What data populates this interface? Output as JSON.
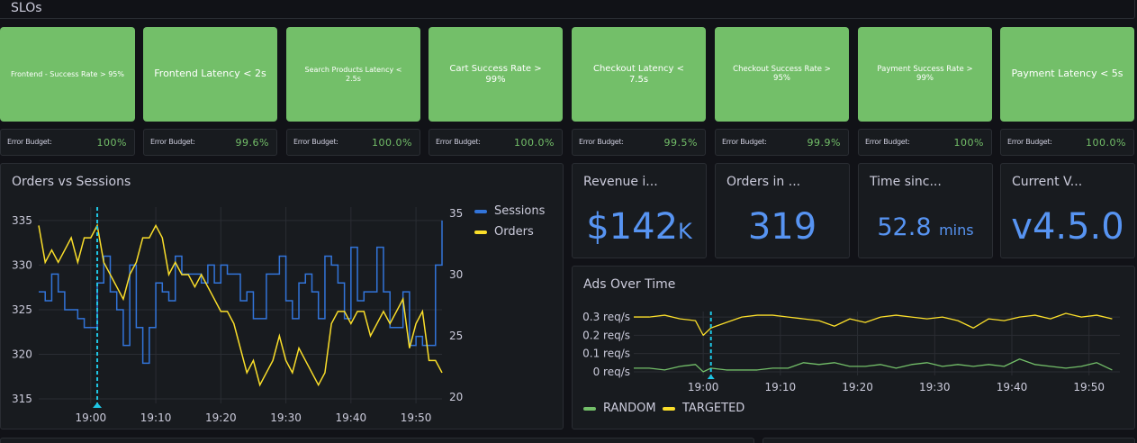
{
  "row": {
    "title": "SLOs"
  },
  "slos": [
    {
      "label": "Frontend - Success Rate > 95%",
      "budget_label": "Error Budget:",
      "budget_value": "100%"
    },
    {
      "label": "Frontend Latency < 2s",
      "budget_label": "Error Budget:",
      "budget_value": "99.6%"
    },
    {
      "label": "Search Products Latency < 2.5s",
      "budget_label": "Error Budget:",
      "budget_value": "100.0%"
    },
    {
      "label": "Cart Success Rate > 99%",
      "budget_label": "Error Budget:",
      "budget_value": "100.0%"
    },
    {
      "label": "Checkout Latency < 7.5s",
      "budget_label": "Error Budget:",
      "budget_value": "99.5%"
    },
    {
      "label": "Checkout Success Rate > 95%",
      "budget_label": "Error Budget:",
      "budget_value": "99.9%"
    },
    {
      "label": "Payment Success Rate > 99%",
      "budget_label": "Error Budget:",
      "budget_value": "100%"
    },
    {
      "label": "Payment Latency < 5s",
      "budget_label": "Error Budget:",
      "budget_value": "100.0%"
    }
  ],
  "stats": {
    "revenue": {
      "title": "Revenue i...",
      "value": "$142",
      "unit": "K"
    },
    "orders": {
      "title": "Orders in ...",
      "value": "319",
      "unit": ""
    },
    "time_since": {
      "title": "Time sinc...",
      "value": "52.8",
      "unit": "mins"
    },
    "version": {
      "title": "Current V...",
      "value": "v4.5.0",
      "unit": ""
    }
  },
  "colors": {
    "green": "#73bf69",
    "blue": "#5794f2",
    "series_blue": "#3274d9",
    "yellow": "#fade2a",
    "annotation": "#1fc7e6"
  },
  "chart_data": [
    {
      "type": "line",
      "title": "Orders vs Sessions",
      "x_ticks": [
        "19:00",
        "19:10",
        "19:20",
        "19:30",
        "19:40",
        "19:50"
      ],
      "x_range": [
        "18:52",
        "19:54"
      ],
      "y_left": {
        "ticks": [
          315,
          320,
          325,
          330,
          335
        ],
        "range": [
          314.5,
          336.5
        ]
      },
      "y_right": {
        "ticks": [
          20,
          25,
          30,
          35
        ],
        "range": [
          19.5,
          35.5
        ]
      },
      "annotation_x": "19:01",
      "legend": {
        "placement": "top-right"
      },
      "series": [
        {
          "name": "Sessions",
          "axis": "left",
          "color": "#3274d9",
          "x": [
            "18:52",
            "18:53",
            "18:54",
            "18:55",
            "18:56",
            "18:57",
            "18:58",
            "18:59",
            "19:00",
            "19:01",
            "19:02",
            "19:03",
            "19:04",
            "19:05",
            "19:06",
            "19:07",
            "19:08",
            "19:09",
            "19:10",
            "19:11",
            "19:12",
            "19:13",
            "19:14",
            "19:15",
            "19:16",
            "19:17",
            "19:18",
            "19:19",
            "19:20",
            "19:21",
            "19:22",
            "19:23",
            "19:24",
            "19:25",
            "19:26",
            "19:27",
            "19:28",
            "19:29",
            "19:30",
            "19:31",
            "19:32",
            "19:33",
            "19:34",
            "19:35",
            "19:36",
            "19:37",
            "19:38",
            "19:39",
            "19:40",
            "19:41",
            "19:42",
            "19:43",
            "19:44",
            "19:45",
            "19:46",
            "19:47",
            "19:48",
            "19:49",
            "19:50",
            "19:51",
            "19:52",
            "19:53",
            "19:54"
          ],
          "values": [
            327,
            326,
            329,
            327,
            325,
            325,
            324,
            323,
            323,
            328,
            331,
            327,
            325,
            321,
            330,
            323,
            319,
            323,
            328,
            327,
            326,
            331,
            329,
            329,
            329,
            328,
            330,
            328,
            330,
            329,
            329,
            326,
            327,
            324,
            324,
            329,
            329,
            331,
            326,
            324,
            328,
            329,
            327,
            324,
            331,
            330,
            328,
            324,
            332,
            326,
            327,
            327,
            332,
            327,
            323,
            323,
            327,
            321,
            322,
            321,
            321,
            330,
            335
          ]
        },
        {
          "name": "Orders",
          "axis": "right",
          "color": "#fade2a",
          "x": [
            "18:52",
            "18:53",
            "18:54",
            "18:55",
            "18:56",
            "18:57",
            "18:58",
            "18:59",
            "19:00",
            "19:01",
            "19:02",
            "19:03",
            "19:04",
            "19:05",
            "19:06",
            "19:07",
            "19:08",
            "19:09",
            "19:10",
            "19:11",
            "19:12",
            "19:13",
            "19:14",
            "19:15",
            "19:16",
            "19:17",
            "19:18",
            "19:19",
            "19:20",
            "19:21",
            "19:22",
            "19:23",
            "19:24",
            "19:25",
            "19:26",
            "19:27",
            "19:28",
            "19:29",
            "19:30",
            "19:31",
            "19:32",
            "19:33",
            "19:34",
            "19:35",
            "19:36",
            "19:37",
            "19:38",
            "19:39",
            "19:40",
            "19:41",
            "19:42",
            "19:43",
            "19:44",
            "19:45",
            "19:46",
            "19:47",
            "19:48",
            "19:49",
            "19:50",
            "19:51",
            "19:52",
            "19:53",
            "19:54"
          ],
          "values": [
            34,
            31,
            32,
            31,
            32,
            33,
            31,
            33,
            33,
            34,
            31,
            30,
            29,
            28,
            30,
            31,
            33,
            33,
            34,
            33,
            30,
            31,
            30,
            30,
            29,
            30,
            29,
            28,
            27,
            27,
            26,
            24,
            22,
            23,
            21,
            22,
            23,
            25,
            23,
            22,
            24,
            23,
            22,
            21,
            22,
            26,
            27,
            27,
            26,
            27,
            27,
            25,
            26,
            27,
            26,
            27,
            28,
            24,
            26,
            27,
            23,
            23,
            22
          ]
        }
      ]
    },
    {
      "type": "line",
      "title": "Ads Over Time",
      "x_ticks": [
        "19:00",
        "19:10",
        "19:20",
        "19:30",
        "19:40",
        "19:50"
      ],
      "x_range": [
        "18:51",
        "19:54"
      ],
      "y_ticks": [
        "0 req/s",
        "0.1 req/s",
        "0.2 req/s",
        "0.3 req/s"
      ],
      "y_range": [
        -0.02,
        0.33
      ],
      "annotation_x": "19:01",
      "legend": {
        "placement": "bottom"
      },
      "series": [
        {
          "name": "RANDOM",
          "color": "#73bf69",
          "x": [
            "18:51",
            "18:53",
            "18:55",
            "18:57",
            "18:59",
            "19:00",
            "19:01",
            "19:03",
            "19:05",
            "19:07",
            "19:09",
            "19:11",
            "19:13",
            "19:15",
            "19:17",
            "19:19",
            "19:21",
            "19:23",
            "19:25",
            "19:27",
            "19:29",
            "19:31",
            "19:33",
            "19:35",
            "19:37",
            "19:39",
            "19:41",
            "19:43",
            "19:45",
            "19:47",
            "19:49",
            "19:51",
            "19:53"
          ],
          "values": [
            0.02,
            0.02,
            0.01,
            0.03,
            0.04,
            0.0,
            0.02,
            0.01,
            0.01,
            0.01,
            0.02,
            0.02,
            0.05,
            0.04,
            0.05,
            0.03,
            0.03,
            0.04,
            0.02,
            0.04,
            0.05,
            0.03,
            0.04,
            0.03,
            0.04,
            0.03,
            0.07,
            0.04,
            0.03,
            0.02,
            0.03,
            0.05,
            0.01
          ]
        },
        {
          "name": "TARGETED",
          "color": "#fade2a",
          "x": [
            "18:51",
            "18:53",
            "18:55",
            "18:57",
            "18:59",
            "19:00",
            "19:01",
            "19:03",
            "19:05",
            "19:07",
            "19:09",
            "19:11",
            "19:13",
            "19:15",
            "19:17",
            "19:19",
            "19:21",
            "19:23",
            "19:25",
            "19:27",
            "19:29",
            "19:31",
            "19:33",
            "19:35",
            "19:37",
            "19:39",
            "19:41",
            "19:43",
            "19:45",
            "19:47",
            "19:49",
            "19:51",
            "19:53"
          ],
          "values": [
            0.3,
            0.3,
            0.31,
            0.29,
            0.28,
            0.2,
            0.24,
            0.27,
            0.3,
            0.31,
            0.31,
            0.3,
            0.29,
            0.28,
            0.25,
            0.29,
            0.27,
            0.3,
            0.31,
            0.3,
            0.29,
            0.3,
            0.28,
            0.24,
            0.29,
            0.28,
            0.3,
            0.31,
            0.29,
            0.32,
            0.3,
            0.31,
            0.29
          ]
        }
      ]
    }
  ]
}
